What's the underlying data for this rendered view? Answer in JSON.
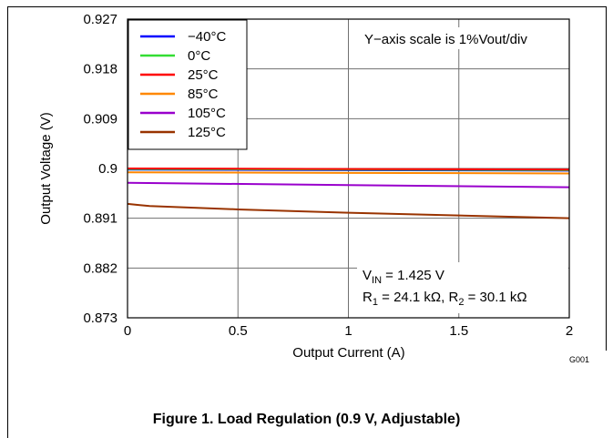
{
  "chart_data": {
    "type": "line",
    "xlabel": "Output Current (A)",
    "ylabel": "Output Voltage (V)",
    "xlim": [
      0,
      2
    ],
    "ylim": [
      0.873,
      0.927
    ],
    "x_ticks": [
      "0",
      "0.5",
      "1",
      "1.5",
      "2"
    ],
    "y_ticks": [
      "0.873",
      "0.882",
      "0.891",
      "0.9",
      "0.909",
      "0.918",
      "0.927"
    ],
    "grid": true,
    "legend_position": "top-left",
    "annotation_top": "Y−axis scale is 1%Vout/div",
    "annotation_vin": {
      "prefix": "V",
      "sub": "IN",
      "suffix": " = 1.425 V"
    },
    "annotation_r": {
      "r1": "R",
      "r1_sub": "1",
      "r1_val": " = 24.1 kΩ, ",
      "r2": "R",
      "r2_sub": "2",
      "r2_val": " = 30.1 kΩ"
    },
    "code": "G001",
    "series": [
      {
        "name": "−40°C",
        "color": "#0000ff",
        "x": [
          0,
          2
        ],
        "y": [
          0.8998,
          0.8996
        ]
      },
      {
        "name": "0°C",
        "color": "#33dd33",
        "x": [
          0,
          2
        ],
        "y": [
          0.8999,
          0.8997
        ]
      },
      {
        "name": "25°C",
        "color": "#ff0000",
        "x": [
          0,
          2
        ],
        "y": [
          0.9,
          0.8998
        ]
      },
      {
        "name": "85°C",
        "color": "#ff8800",
        "x": [
          0,
          2
        ],
        "y": [
          0.8993,
          0.8991
        ]
      },
      {
        "name": "105°C",
        "color": "#9900cc",
        "x": [
          0,
          2
        ],
        "y": [
          0.8974,
          0.8966
        ]
      },
      {
        "name": "125°C",
        "color": "#993300",
        "x": [
          0,
          0.05,
          0.1,
          0.5,
          1,
          1.5,
          2
        ],
        "y": [
          0.8936,
          0.8934,
          0.8932,
          0.8926,
          0.892,
          0.8915,
          0.891
        ]
      }
    ]
  },
  "caption": "Figure 1. Load Regulation (0.9 V, Adjustable)"
}
